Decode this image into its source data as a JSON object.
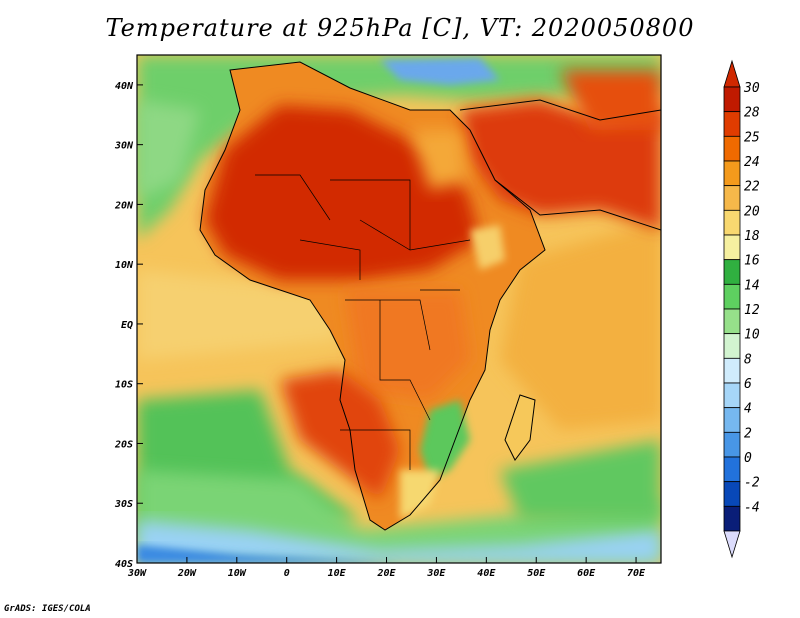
{
  "title": "Temperature at 925hPa [C], VT: 2020050800",
  "credit": "GrADS: IGES/COLA",
  "map": {
    "lon_range": [
      -30,
      75
    ],
    "lat_range": [
      -40,
      45
    ],
    "lon_ticks": [
      {
        "lon": -30,
        "label": "30W"
      },
      {
        "lon": -20,
        "label": "20W"
      },
      {
        "lon": -10,
        "label": "10W"
      },
      {
        "lon": 0,
        "label": "0"
      },
      {
        "lon": 10,
        "label": "10E"
      },
      {
        "lon": 20,
        "label": "20E"
      },
      {
        "lon": 30,
        "label": "30E"
      },
      {
        "lon": 40,
        "label": "40E"
      },
      {
        "lon": 50,
        "label": "50E"
      },
      {
        "lon": 60,
        "label": "60E"
      },
      {
        "lon": 70,
        "label": "70E"
      }
    ],
    "lat_ticks": [
      {
        "lat": 40,
        "label": "40N"
      },
      {
        "lat": 30,
        "label": "30N"
      },
      {
        "lat": 20,
        "label": "20N"
      },
      {
        "lat": 10,
        "label": "10N"
      },
      {
        "lat": 0,
        "label": "EQ"
      },
      {
        "lat": -10,
        "label": "10S"
      },
      {
        "lat": -20,
        "label": "20S"
      },
      {
        "lat": -30,
        "label": "30S"
      },
      {
        "lat": -40,
        "label": "40S"
      }
    ]
  },
  "colorbar": {
    "labels": [
      "30",
      "28",
      "25",
      "24",
      "22",
      "20",
      "18",
      "16",
      "14",
      "12",
      "10",
      "8",
      "6",
      "4",
      "2",
      "0",
      "-2",
      "-4"
    ],
    "colors": [
      "#c01a00",
      "#e03c00",
      "#f06a00",
      "#f49a1c",
      "#f6b84a",
      "#f8d870",
      "#f6f0a0",
      "#30b040",
      "#5ed060",
      "#96e08a",
      "#d2f4d0",
      "#d0ecfc",
      "#a6d6f8",
      "#76b8f0",
      "#4896e6",
      "#2272dc",
      "#0848b8",
      "#0a1e78"
    ],
    "top_color": "#d02800",
    "bottom_color": "#dcdcfc"
  },
  "colors": {
    "ocean_cool": "#60c860",
    "ocean_mild": "#f6d070",
    "land_hot": "#d83000",
    "land_warm": "#f08a20",
    "cold": "#1e78e0",
    "boundary": "#000000"
  }
}
